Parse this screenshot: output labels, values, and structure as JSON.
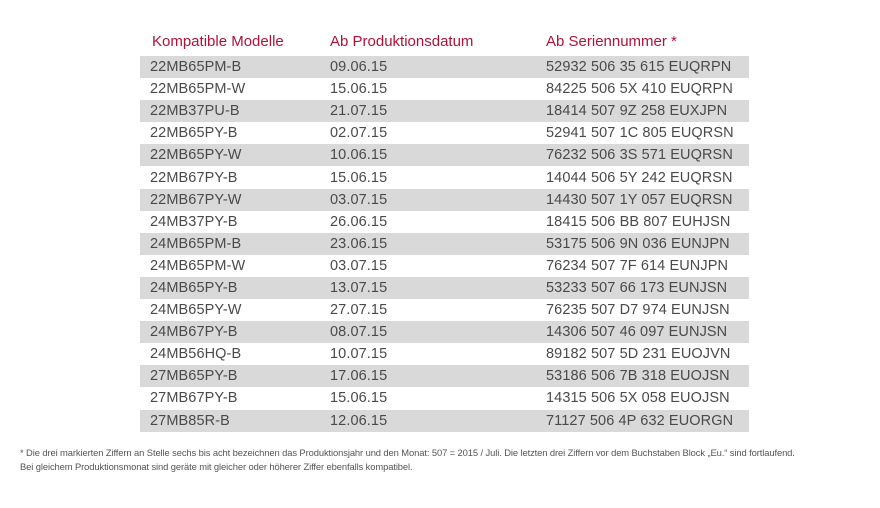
{
  "table": {
    "headers": [
      "Kompatible Modelle",
      "Ab Produktionsdatum",
      "Ab Seriennummer *"
    ],
    "rows": [
      [
        "22MB65PM-B",
        "09.06.15",
        "52932 506 35 615 EUQRPN"
      ],
      [
        "22MB65PM-W",
        "15.06.15",
        "84225 506 5X 410 EUQRPN"
      ],
      [
        "22MB37PU-B",
        "21.07.15",
        "18414 507 9Z 258 EUXJPN"
      ],
      [
        "22MB65PY-B",
        "02.07.15",
        "52941 507 1C 805 EUQRSN"
      ],
      [
        "22MB65PY-W",
        "10.06.15",
        "76232 506 3S 571 EUQRSN"
      ],
      [
        "22MB67PY-B",
        "15.06.15",
        "14044 506 5Y 242 EUQRSN"
      ],
      [
        "22MB67PY-W",
        "03.07.15",
        "14430 507 1Y 057 EUQRSN"
      ],
      [
        "24MB37PY-B",
        "26.06.15",
        "18415 506 BB 807 EUHJSN"
      ],
      [
        "24MB65PM-B",
        "23.06.15",
        "53175 506 9N 036 EUNJPN"
      ],
      [
        "24MB65PM-W",
        "03.07.15",
        "76234 507 7F 614 EUNJPN"
      ],
      [
        "24MB65PY-B",
        "13.07.15",
        "53233 507 66 173 EUNJSN"
      ],
      [
        "24MB65PY-W",
        "27.07.15",
        "76235 507 D7 974 EUNJSN"
      ],
      [
        "24MB67PY-B",
        "08.07.15",
        "14306 507 46 097 EUNJSN"
      ],
      [
        "24MB56HQ-B",
        "10.07.15",
        "89182 507 5D 231 EUOJVN"
      ],
      [
        "27MB65PY-B",
        "17.06.15",
        "53186 506 7B 318 EUOJSN"
      ],
      [
        "27MB67PY-B",
        "15.06.15",
        "14315 506 5X 058 EUOJSN"
      ],
      [
        "27MB85R-B",
        "12.06.15",
        "71127 506 4P 632 EUORGN"
      ]
    ]
  },
  "footnote": {
    "line1": "* Die drei markierten Ziffern an Stelle sechs bis acht bezeichnen das Produktionsjahr und den Monat: 507 = 2015 / Juli. Die letzten drei Ziffern vor dem Buchstaben Block „Eu.“ sind fortlaufend.",
    "line2": "Bei gleichem Produktionsmonat sind geräte mit gleicher oder höherer Ziffer ebenfalls kompatibel."
  },
  "colors": {
    "header_text": "#b0123a",
    "row_shade": "#d9d9d9",
    "body_text": "#4a4a4a"
  }
}
